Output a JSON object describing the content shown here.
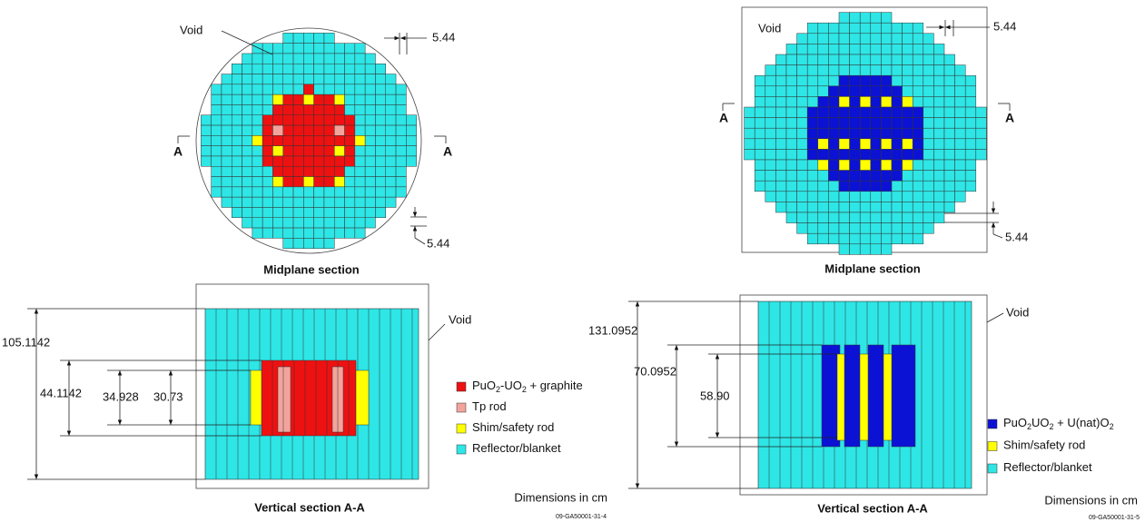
{
  "left": {
    "midplane": {
      "void_label": "Void",
      "top_dim": "5.44",
      "section_left": "A",
      "section_right": "A",
      "bottom_dim": "5.44",
      "caption": "Midplane section"
    },
    "vertical": {
      "height_dims": [
        "105.1142",
        "44.1142",
        "34.928",
        "30.73"
      ],
      "void_label": "Void",
      "caption": "Vertical section A-A"
    },
    "legend": [
      {
        "parts": [
          "PuO",
          "2",
          "-UO",
          "2",
          " + graphite"
        ]
      },
      {
        "parts": [
          "Tp rod"
        ]
      },
      {
        "parts": [
          "Shim/safety rod"
        ]
      },
      {
        "parts": [
          "Reflector/blanket"
        ]
      }
    ],
    "units_note": "Dimensions in cm",
    "figure_id": "09-GA50001-31-4"
  },
  "right": {
    "midplane": {
      "void_label": "Void",
      "top_dim": "5.44",
      "section_left": "A",
      "section_right": "A",
      "bottom_dim": "5.44",
      "caption": "Midplane section"
    },
    "vertical": {
      "height_dims": [
        "131.0952",
        "70.0952",
        "58.90"
      ],
      "void_label": "Void",
      "caption": "Vertical section A-A"
    },
    "legend": [
      {
        "parts": [
          "PuO",
          "2",
          "UO",
          "2",
          " + U(nat)O",
          "2"
        ]
      },
      {
        "parts": [
          "Shim/safety rod"
        ]
      },
      {
        "parts": [
          "Reflector/blanket"
        ]
      }
    ],
    "units_note": "Dimensions in cm",
    "figure_id": "09-GA50001-31-5"
  }
}
